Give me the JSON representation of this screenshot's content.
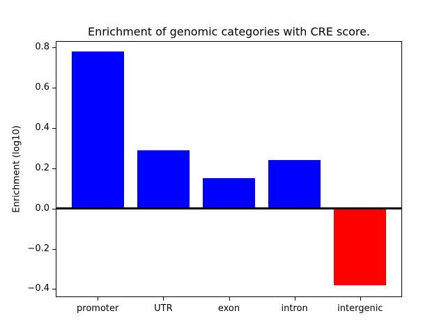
{
  "chart_data": {
    "type": "bar",
    "title": "Enrichment of genomic categories with CRE score.",
    "xlabel": "",
    "ylabel": "Enrichment (log10)",
    "categories": [
      "promoter",
      "UTR",
      "exon",
      "intron",
      "intergenic"
    ],
    "values": [
      0.78,
      0.29,
      0.15,
      0.24,
      -0.38
    ],
    "bar_colors": [
      "#0000ff",
      "#0000ff",
      "#0000ff",
      "#0000ff",
      "#ff0000"
    ],
    "positive_color": "#0000ff",
    "negative_color": "#ff0000",
    "bar_width": 0.8,
    "ylim": [
      -0.44,
      0.83
    ],
    "xlim": [
      -0.64,
      4.64
    ],
    "yticks": [
      -0.4,
      -0.2,
      0.0,
      0.2,
      0.4,
      0.6,
      0.8
    ],
    "ytick_labels": [
      "−0.4",
      "−0.2",
      "0.0",
      "0.2",
      "0.4",
      "0.6",
      "0.8"
    ],
    "zero_line": true,
    "grid": false,
    "legend": "none",
    "background_color": "#ffffff",
    "axis_color": "#000000"
  }
}
